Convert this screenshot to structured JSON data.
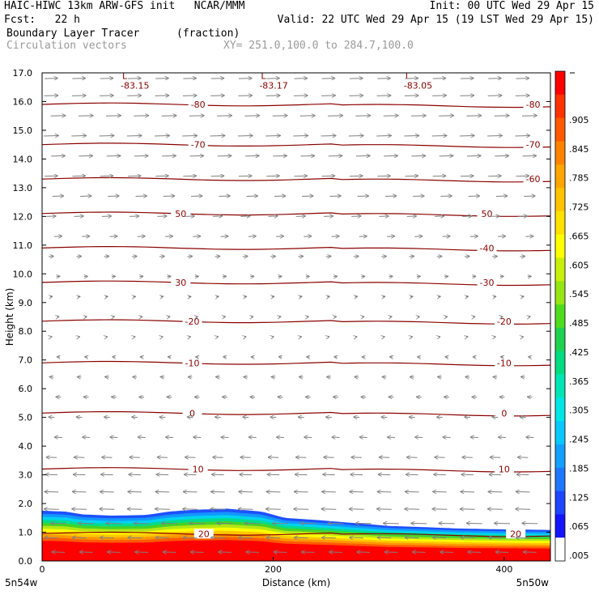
{
  "header": {
    "line1_left": "HAIC-HIWC 13km ARW-GFS init   NCAR/MMM",
    "line1_right": "Init: 00 UTC Wed 29 Apr 15",
    "line2_left": "Fcst:   22 h",
    "line2_right": "Valid: 22 UTC Wed 29 Apr 15 (19 LST Wed 29 Apr 15)",
    "line3_field": "Boundary Layer Tracer",
    "line3_units": "(fraction)",
    "line4_field": "Circulation vectors",
    "line4_xy": "XY= 251.0,100.0 to 284.7,100.0"
  },
  "colors": {
    "isotherm": "#8b0000",
    "vector": "#808080",
    "frame": "#000000",
    "colorbar": [
      "#ffffff",
      "#1414ff",
      "#1e46ff",
      "#1e78ff",
      "#14a0ff",
      "#0ac8ff",
      "#00e6e6",
      "#00e6b4",
      "#00dc82",
      "#1ed250",
      "#50dc1e",
      "#96e614",
      "#c8f00a",
      "#ffff00",
      "#ffe100",
      "#ffc300",
      "#ffa500",
      "#ff8200",
      "#ff5a00",
      "#ff3200",
      "#ff0000"
    ]
  },
  "chart_data": {
    "type": "heatmap",
    "title": "Boundary Layer Tracer",
    "units": "(fraction)",
    "overlay": "Circulation vectors",
    "xlabel": "Distance (km)",
    "ylabel": "Height (km)",
    "xlim": [
      0,
      440
    ],
    "ylim": [
      0,
      17
    ],
    "x_ticks": [
      "0",
      "200",
      "400"
    ],
    "y_ticks": [
      "0.0",
      "1.0",
      "2.0",
      "3.0",
      "4.0",
      "5.0",
      "6.0",
      "7.0",
      "8.0",
      "9.0",
      "10.0",
      "11.0",
      "12.0",
      "13.0",
      "14.0",
      "15.0",
      "16.0",
      "17.0"
    ],
    "x_end_labels": {
      "left": "5n54w",
      "right": "5n50w"
    },
    "colorbar_labels": [
      ".005",
      ".065",
      ".125",
      ".185",
      ".245",
      ".305",
      ".365",
      ".425",
      ".485",
      ".545",
      ".605",
      ".665",
      ".725",
      ".785",
      ".845",
      ".905"
    ],
    "tracer_top_km": [
      [
        0,
        1.75
      ],
      [
        20,
        1.72
      ],
      [
        35,
        1.62
      ],
      [
        60,
        1.58
      ],
      [
        90,
        1.6
      ],
      [
        110,
        1.72
      ],
      [
        130,
        1.78
      ],
      [
        160,
        1.82
      ],
      [
        190,
        1.72
      ],
      [
        210,
        1.5
      ],
      [
        240,
        1.42
      ],
      [
        270,
        1.32
      ],
      [
        300,
        1.22
      ],
      [
        330,
        1.18
      ],
      [
        360,
        1.13
      ],
      [
        400,
        1.1
      ],
      [
        440,
        1.08
      ]
    ],
    "isotherms": [
      {
        "value": -80,
        "height_km": 15.9,
        "labels": [
          {
            "x": 135,
            "text": "-80"
          },
          {
            "x": 425,
            "text": "-80"
          }
        ]
      },
      {
        "value": -70,
        "height_km": 14.5,
        "labels": [
          {
            "x": 135,
            "text": "-70"
          },
          {
            "x": 425,
            "text": "-70"
          }
        ]
      },
      {
        "value": -60,
        "height_km": 13.3,
        "labels": [
          {
            "x": 425,
            "text": "-60"
          }
        ]
      },
      {
        "value": -50,
        "height_km": 12.1,
        "labels": [
          {
            "x": 120,
            "text": "50"
          },
          {
            "x": 385,
            "text": "50"
          }
        ]
      },
      {
        "value": -40,
        "height_km": 10.9,
        "labels": [
          {
            "x": 385,
            "text": "-40"
          }
        ]
      },
      {
        "value": -30,
        "height_km": 9.7,
        "labels": [
          {
            "x": 120,
            "text": "30"
          },
          {
            "x": 385,
            "text": "-30"
          }
        ]
      },
      {
        "value": -20,
        "height_km": 8.35,
        "labels": [
          {
            "x": 130,
            "text": "-20"
          },
          {
            "x": 400,
            "text": "-20"
          }
        ]
      },
      {
        "value": -10,
        "height_km": 6.9,
        "labels": [
          {
            "x": 130,
            "text": "-10"
          },
          {
            "x": 400,
            "text": "-10"
          }
        ]
      },
      {
        "value": 0,
        "height_km": 5.15,
        "labels": [
          {
            "x": 130,
            "text": "0"
          },
          {
            "x": 400,
            "text": "0"
          }
        ]
      },
      {
        "value": 10,
        "height_km": 3.2,
        "labels": [
          {
            "x": 135,
            "text": "10"
          },
          {
            "x": 400,
            "text": "10"
          }
        ]
      },
      {
        "value": 20,
        "height_km": 0.95,
        "labels": [
          {
            "x": 140,
            "text": "20"
          },
          {
            "x": 410,
            "text": "20"
          }
        ]
      }
    ],
    "minima": [
      {
        "x": 75,
        "y": 16.7,
        "symbol": "L",
        "value": "-83.15"
      },
      {
        "x": 195,
        "y": 16.7,
        "symbol": "L",
        "value": "-83.17"
      },
      {
        "x": 320,
        "y": 16.7,
        "symbol": "L",
        "value": "-83.05"
      }
    ],
    "wind_profile": [
      {
        "z": 0.3,
        "dir": -1,
        "len": 0.75
      },
      {
        "z": 0.8,
        "dir": -1,
        "len": 0.8
      },
      {
        "z": 1.3,
        "dir": -1,
        "len": 0.9
      },
      {
        "z": 1.8,
        "dir": -1,
        "len": 0.85
      },
      {
        "z": 2.4,
        "dir": -1,
        "len": 0.8
      },
      {
        "z": 3.0,
        "dir": -1,
        "len": 0.7
      },
      {
        "z": 3.6,
        "dir": -1,
        "len": 0.6
      },
      {
        "z": 4.3,
        "dir": -1,
        "len": 0.45
      },
      {
        "z": 5.0,
        "dir": -1,
        "len": 0.35
      },
      {
        "z": 5.7,
        "dir": -1,
        "len": 0.3
      },
      {
        "z": 6.4,
        "dir": -1,
        "len": 0.25
      },
      {
        "z": 7.1,
        "dir": -1,
        "len": 0.18
      },
      {
        "z": 7.8,
        "dir": 1,
        "len": 0.1
      },
      {
        "z": 8.5,
        "dir": 1,
        "len": 0.12
      },
      {
        "z": 9.2,
        "dir": 1,
        "len": 0.15
      },
      {
        "z": 9.9,
        "dir": 1,
        "len": 0.22
      },
      {
        "z": 10.6,
        "dir": 1,
        "len": 0.3
      },
      {
        "z": 11.3,
        "dir": 1,
        "len": 0.45
      },
      {
        "z": 12.0,
        "dir": 1,
        "len": 0.55
      },
      {
        "z": 12.7,
        "dir": 1,
        "len": 0.65
      },
      {
        "z": 13.4,
        "dir": 1,
        "len": 0.75
      },
      {
        "z": 14.1,
        "dir": 1,
        "len": 0.8
      },
      {
        "z": 14.8,
        "dir": 1,
        "len": 0.85
      },
      {
        "z": 15.5,
        "dir": 1,
        "len": 0.85
      },
      {
        "z": 16.2,
        "dir": 1,
        "len": 0.8
      },
      {
        "z": 16.8,
        "dir": 1,
        "len": 0.75
      }
    ]
  }
}
